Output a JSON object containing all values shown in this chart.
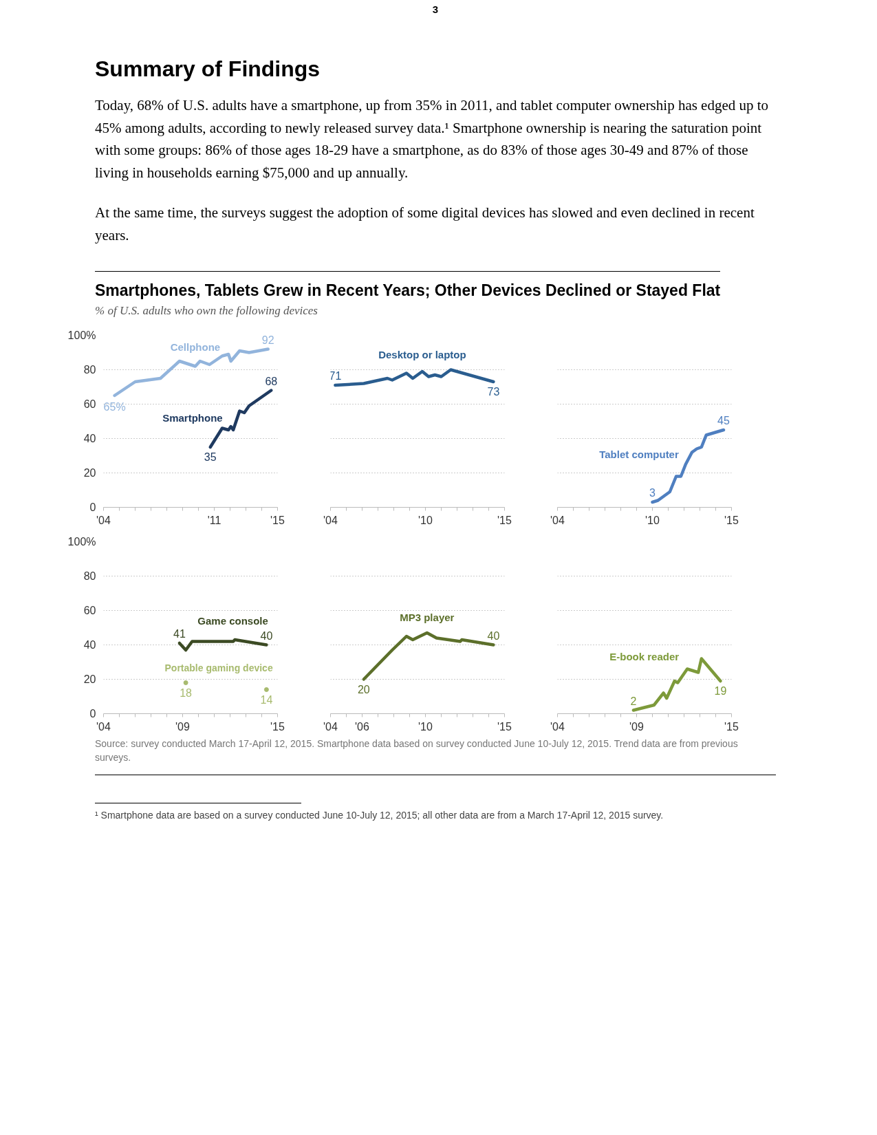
{
  "chart_data": [
    {
      "type": "other",
      "title": "Summary of Findings",
      "annotations": [
        "3",
        "Today, 68% of U.S. adults have a smartphone, up from 35% in 2011, and tablet computer ownership has edged up to 45% among adults, according to newly released survey data.¹ Smartphone ownership is nearing the saturation point with some groups: 86% of those ages 18-29 have a smartphone, as do 83% of those ages 30-49 and 87% of those living in households earning $75,000 and up annually.",
        "At the same time, the surveys suggest the adoption of some digital devices has slowed and even declined in recent years."
      ]
    },
    {
      "type": "line",
      "title": "Smartphones, Tablets Grew in Recent Years; Other Devices Declined or Stayed Flat",
      "subtitle": "% of U.S. adults who own the following devices",
      "xlim": [
        2004,
        2015
      ],
      "ylim": [
        0,
        100
      ],
      "grid": "y",
      "xticks": [
        {
          "value": 2004,
          "label": "'04"
        },
        {
          "value": 2005,
          "label": null
        },
        {
          "value": 2006,
          "label": null
        },
        {
          "value": 2007,
          "label": null
        },
        {
          "value": 2008,
          "label": null
        },
        {
          "value": 2009,
          "label": null
        },
        {
          "value": 2010,
          "label": null
        },
        {
          "value": 2011,
          "label": "'11"
        },
        {
          "value": 2012,
          "label": null
        },
        {
          "value": 2013,
          "label": null
        },
        {
          "value": 2014,
          "label": null
        },
        {
          "value": 2015,
          "label": "'15"
        }
      ],
      "yticks": [
        0,
        20,
        40,
        60,
        80,
        {
          "value": 100,
          "label": "100%"
        }
      ],
      "series": [
        {
          "name": "Cellphone",
          "color": "#92b4dc",
          "x": [
            2004.7,
            2006.0,
            2007.6,
            2008.8,
            2009.8,
            2010.1,
            2010.7,
            2011.5,
            2011.9,
            2012.05,
            2012.6,
            2013.2,
            2014.4
          ],
          "values": [
            65,
            73,
            75,
            85,
            82,
            85,
            83,
            88,
            89,
            85,
            91,
            90,
            92
          ],
          "value_labels": [
            "65%",
            null,
            null,
            null,
            null,
            null,
            null,
            null,
            null,
            null,
            null,
            null,
            "92"
          ]
        },
        {
          "name": "Smartphone",
          "color": "#1f3a60",
          "x": [
            2010.75,
            2011.5,
            2011.9,
            2012.05,
            2012.2,
            2012.6,
            2012.9,
            2013.2,
            2014.6
          ],
          "values": [
            35,
            46,
            45,
            47,
            45,
            56,
            55,
            59,
            68
          ],
          "value_labels": [
            "35",
            null,
            null,
            null,
            null,
            null,
            null,
            null,
            "68"
          ]
        }
      ]
    },
    {
      "type": "line",
      "xlim": [
        2004,
        2015
      ],
      "ylim": [
        0,
        100
      ],
      "grid": "y",
      "tick_labels": "x",
      "xticks": [
        {
          "value": 2004,
          "label": "'04"
        },
        {
          "value": 2005,
          "label": null
        },
        {
          "value": 2006,
          "label": null
        },
        {
          "value": 2007,
          "label": null
        },
        {
          "value": 2008,
          "label": null
        },
        {
          "value": 2009,
          "label": null
        },
        {
          "value": 2010,
          "label": "'10"
        },
        {
          "value": 2011,
          "label": null
        },
        {
          "value": 2012,
          "label": null
        },
        {
          "value": 2013,
          "label": null
        },
        {
          "value": 2014,
          "label": null
        },
        {
          "value": 2015,
          "label": "'15"
        }
      ],
      "yticks": [
        0,
        20,
        40,
        60,
        80,
        100
      ],
      "series": [
        {
          "name": "Desktop or laptop",
          "color": "#2a5d8f",
          "x": [
            2004.3,
            2006.1,
            2007.6,
            2007.9,
            2008.8,
            2009.2,
            2009.8,
            2010.2,
            2010.6,
            2011.0,
            2011.6,
            2014.3
          ],
          "values": [
            71,
            72,
            75,
            74,
            78,
            75,
            79,
            76,
            77,
            76,
            80,
            73
          ],
          "value_labels": [
            "71",
            null,
            null,
            null,
            null,
            null,
            null,
            null,
            null,
            null,
            null,
            "73"
          ]
        }
      ]
    },
    {
      "type": "line",
      "xlim": [
        2004,
        2015
      ],
      "ylim": [
        0,
        100
      ],
      "grid": "y",
      "tick_labels": "x",
      "xticks": [
        {
          "value": 2004,
          "label": "'04"
        },
        {
          "value": 2005,
          "label": null
        },
        {
          "value": 2006,
          "label": null
        },
        {
          "value": 2007,
          "label": null
        },
        {
          "value": 2008,
          "label": null
        },
        {
          "value": 2009,
          "label": null
        },
        {
          "value": 2010,
          "label": "'10"
        },
        {
          "value": 2011,
          "label": null
        },
        {
          "value": 2012,
          "label": null
        },
        {
          "value": 2013,
          "label": null
        },
        {
          "value": 2014,
          "label": null
        },
        {
          "value": 2015,
          "label": "'15"
        }
      ],
      "yticks": [
        0,
        20,
        40,
        60,
        80,
        100
      ],
      "series": [
        {
          "name": "Tablet computer",
          "color": "#4f7fc0",
          "x": [
            2010.0,
            2010.35,
            2011.1,
            2011.5,
            2011.8,
            2012.1,
            2012.5,
            2012.8,
            2013.1,
            2013.4,
            2014.5
          ],
          "values": [
            3,
            4,
            9,
            18,
            18,
            25,
            32,
            34,
            35,
            42,
            45
          ],
          "value_labels": [
            "3",
            null,
            null,
            null,
            null,
            null,
            null,
            null,
            null,
            null,
            "45"
          ]
        }
      ]
    },
    {
      "type": "line",
      "annotations": [
        "Source: survey conducted March 17-April 12, 2015. Smartphone data based on survey conducted June 10-July 12, 2015. Trend data are from previous surveys."
      ],
      "xlim": [
        2004,
        2015
      ],
      "ylim": [
        0,
        100
      ],
      "grid": "y",
      "xticks": [
        {
          "value": 2004,
          "label": "'04"
        },
        {
          "value": 2005,
          "label": null
        },
        {
          "value": 2006,
          "label": null
        },
        {
          "value": 2007,
          "label": null
        },
        {
          "value": 2008,
          "label": null
        },
        {
          "value": 2009,
          "label": "'09"
        },
        {
          "value": 2010,
          "label": null
        },
        {
          "value": 2011,
          "label": null
        },
        {
          "value": 2012,
          "label": null
        },
        {
          "value": 2013,
          "label": null
        },
        {
          "value": 2014,
          "label": null
        },
        {
          "value": 2015,
          "label": "'15"
        }
      ],
      "yticks": [
        0,
        20,
        40,
        60,
        80,
        {
          "value": 100,
          "label": "100%"
        }
      ],
      "series": [
        {
          "name": "Game console",
          "color": "#3b4a23",
          "x": [
            2008.8,
            2009.2,
            2009.6,
            2012.2,
            2012.3,
            2014.3
          ],
          "values": [
            41,
            37,
            42,
            42,
            43,
            40
          ],
          "value_labels": [
            "41",
            null,
            null,
            null,
            null,
            "40"
          ]
        },
        {
          "name": "Portable gaming device",
          "type": "scatter",
          "marker": "circle",
          "color": "#a8bb6f",
          "x": [
            2009.2,
            2014.3
          ],
          "values": [
            18,
            14
          ],
          "value_labels": [
            "18",
            "14"
          ]
        }
      ]
    },
    {
      "type": "line",
      "xlim": [
        2004,
        2015
      ],
      "ylim": [
        0,
        100
      ],
      "grid": "y",
      "tick_labels": "x",
      "xticks": [
        {
          "value": 2004,
          "label": "'04"
        },
        {
          "value": 2005,
          "label": null
        },
        {
          "value": 2006,
          "label": "'06"
        },
        {
          "value": 2007,
          "label": null
        },
        {
          "value": 2008,
          "label": null
        },
        {
          "value": 2009,
          "label": null
        },
        {
          "value": 2010,
          "label": "'10"
        },
        {
          "value": 2011,
          "label": null
        },
        {
          "value": 2012,
          "label": null
        },
        {
          "value": 2013,
          "label": null
        },
        {
          "value": 2014,
          "label": null
        },
        {
          "value": 2015,
          "label": "'15"
        }
      ],
      "yticks": [
        0,
        20,
        40,
        60,
        80,
        100
      ],
      "series": [
        {
          "name": "MP3 player",
          "color": "#5c6f2a",
          "x": [
            2006.1,
            2007.9,
            2008.8,
            2009.2,
            2010.1,
            2010.7,
            2012.2,
            2012.3,
            2014.3
          ],
          "values": [
            20,
            37,
            45,
            43,
            47,
            44,
            42,
            43,
            40
          ],
          "value_labels": [
            "20",
            null,
            null,
            null,
            null,
            null,
            null,
            null,
            "40"
          ]
        }
      ]
    },
    {
      "type": "line",
      "xlim": [
        2004,
        2015
      ],
      "ylim": [
        0,
        100
      ],
      "grid": "y",
      "tick_labels": "x",
      "xticks": [
        {
          "value": 2004,
          "label": "'04"
        },
        {
          "value": 2005,
          "label": null
        },
        {
          "value": 2006,
          "label": null
        },
        {
          "value": 2007,
          "label": null
        },
        {
          "value": 2008,
          "label": null
        },
        {
          "value": 2009,
          "label": "'09"
        },
        {
          "value": 2010,
          "label": null
        },
        {
          "value": 2011,
          "label": null
        },
        {
          "value": 2012,
          "label": null
        },
        {
          "value": 2013,
          "label": null
        },
        {
          "value": 2014,
          "label": null
        },
        {
          "value": 2015,
          "label": "'15"
        }
      ],
      "yticks": [
        0,
        20,
        40,
        60,
        80,
        100
      ],
      "series": [
        {
          "name": "E-book reader",
          "color": "#7d9a3a",
          "x": [
            2008.8,
            2010.1,
            2010.7,
            2010.9,
            2011.4,
            2011.6,
            2012.2,
            2012.9,
            2013.1,
            2014.3
          ],
          "values": [
            2,
            5,
            12,
            9,
            19,
            18,
            26,
            24,
            32,
            19
          ],
          "value_labels": [
            "2",
            null,
            null,
            null,
            null,
            null,
            null,
            null,
            null,
            "19"
          ]
        }
      ]
    },
    {
      "type": "other",
      "annotations": [
        "¹ Smartphone data are based on a survey conducted June 10-July 12, 2015; all other data are from a March 17-April 12, 2015 survey."
      ]
    }
  ]
}
